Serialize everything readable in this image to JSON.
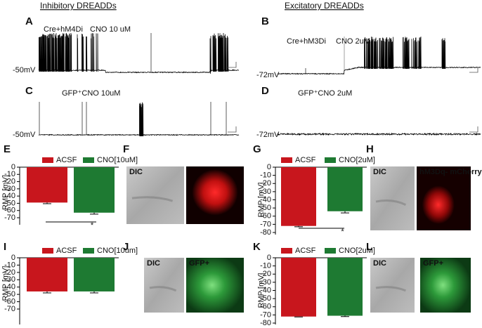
{
  "headers": [
    "Inhibitory DREADDs",
    "Excitatory DREADDs"
  ],
  "traces": [
    {
      "letter": "A",
      "labels": [
        "Cre+hM4Di",
        "CNO 10 uM"
      ],
      "baseline": "-50mV"
    },
    {
      "letter": "B",
      "labels": [
        "Cre+hM3Di",
        "CNO 2uM"
      ],
      "baseline": "-72mV"
    },
    {
      "letter": "C",
      "labels": [
        "GFP⁺CNO 10uM"
      ],
      "baseline": "-50mV"
    },
    {
      "letter": "D",
      "labels": [
        "GFP⁺CNO 2uM"
      ],
      "baseline": "-72mV"
    }
  ],
  "images": [
    {
      "letter": "F",
      "labels": [
        "DIC"
      ]
    },
    {
      "letter": "H",
      "labels": [
        "DIC",
        "hM3Dq- mCherry"
      ]
    },
    {
      "letter": "J",
      "labels": [
        "DIC",
        "GFP+"
      ]
    },
    {
      "letter": "L",
      "labels": [
        "DIC",
        "GFP+"
      ]
    }
  ],
  "chart_data": [
    {
      "type": "bar",
      "letter": "E",
      "y_label": "RMP [mV]",
      "categories": [
        "ACSF",
        "CNO[10uM]"
      ],
      "values": [
        -49,
        -63
      ],
      "errors": [
        1.5,
        2
      ],
      "colors": [
        "#c8161d",
        "#1e7a32"
      ],
      "ylim": [
        -70,
        0
      ],
      "yticks": [
        0,
        -10,
        -20,
        -30,
        -40,
        -50,
        -60,
        -70
      ],
      "significance": "*"
    },
    {
      "type": "bar",
      "letter": "G",
      "y_label": "RMP [mV]",
      "categories": [
        "ACSF",
        "CNO[2uM]"
      ],
      "values": [
        -72,
        -54
      ],
      "errors": [
        1,
        2
      ],
      "colors": [
        "#c8161d",
        "#1e7a32"
      ],
      "ylim": [
        -80,
        0
      ],
      "yticks": [
        0,
        -10,
        -20,
        -30,
        -40,
        -50,
        -60,
        -70,
        -80
      ],
      "significance": "*"
    },
    {
      "type": "bar",
      "letter": "I",
      "y_label": "RMP [mV]",
      "categories": [
        "ACSF",
        "CNO[10um]"
      ],
      "values": [
        -46,
        -46
      ],
      "errors": [
        2,
        2
      ],
      "colors": [
        "#c8161d",
        "#1e7a32"
      ],
      "ylim": [
        -70,
        0
      ],
      "yticks": [
        0,
        -10,
        -20,
        -30,
        -40,
        -50,
        -60,
        -70
      ]
    },
    {
      "type": "bar",
      "letter": "K",
      "y_label": "RMP [mV]",
      "categories": [
        "ACSF",
        "CNO[2uM]"
      ],
      "values": [
        -72,
        -71
      ],
      "errors": [
        0.5,
        1
      ],
      "colors": [
        "#c8161d",
        "#1e7a32"
      ],
      "ylim": [
        -80,
        0
      ],
      "yticks": [
        0,
        -10,
        -20,
        -30,
        -40,
        -50,
        -60,
        -70,
        -80
      ]
    }
  ]
}
